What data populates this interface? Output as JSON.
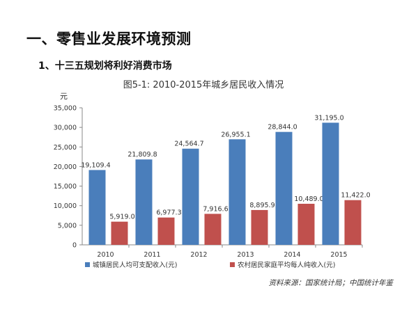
{
  "page": {
    "heading": "一、零售业发展环境预测",
    "subheading": "1、十三五规划将利好消费市场"
  },
  "chart_data": {
    "type": "bar",
    "title": "图5-1: 2010-2015年城乡居民收入情况",
    "ylabel": "元",
    "xlabel": "",
    "categories": [
      "2010",
      "2011",
      "2012",
      "2013",
      "2014",
      "2015"
    ],
    "series": [
      {
        "name": "城镇居民人均可支配收入(元)",
        "color": "#4a7ebb",
        "values": [
          19109.4,
          21809.8,
          24564.7,
          26955.1,
          28844.0,
          31195.0
        ],
        "labels": [
          "19,109.4",
          "21,809.8",
          "24,564.7",
          "26,955.1",
          "28,844.0",
          "31,195.0"
        ]
      },
      {
        "name": "农村居民家庭平均每人纯收入(元)",
        "color": "#c0504d",
        "values": [
          5919.0,
          6977.3,
          7916.6,
          8895.9,
          10489.0,
          11422.0
        ],
        "labels": [
          "5,919.0",
          "6,977.3",
          "7,916.6",
          "8,895.9",
          "10,489.0",
          "11,422.0"
        ]
      }
    ],
    "ylim": [
      0,
      35000
    ],
    "yticks": [
      0,
      5000,
      10000,
      15000,
      20000,
      25000,
      30000,
      35000
    ],
    "ytick_labels": [
      "0",
      "5,000",
      "10,000",
      "15,000",
      "20,000",
      "25,000",
      "30,000",
      "35,000"
    ],
    "grid": false,
    "legend_position": "bottom",
    "source": "资料来源：国家统计局；中国统计年鉴"
  }
}
